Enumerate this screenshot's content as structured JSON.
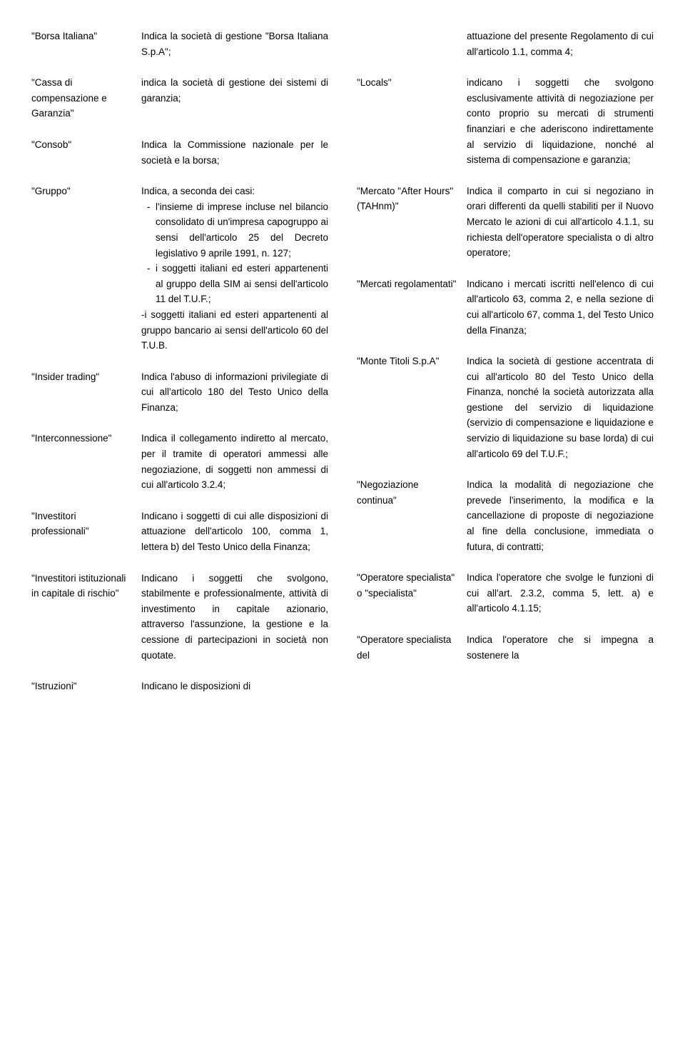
{
  "left": [
    {
      "term": "\"Borsa Italiana\"",
      "def": "Indica la società di gestione \"Borsa Italiana S.p.A\";"
    },
    {
      "term": "\"Cassa di compensazione e Garanzia\"",
      "def": "indica la società di gestione dei sistemi di garanzia;"
    },
    {
      "term": "\"Consob\"",
      "def": "Indica la Commissione nazionale per le società e la borsa;"
    },
    {
      "term": "\"Gruppo\"",
      "def_pre": "Indica, a seconda dei casi:",
      "def_list": [
        "l'insieme di imprese incluse nel bilancio consolidato di un'impresa capogruppo ai sensi dell'articolo 25 del Decreto legislativo 9 aprile 1991, n. 127;",
        "i soggetti italiani ed esteri appartenenti al gruppo della SIM ai sensi dell'articolo 11 del T.U.F.;"
      ],
      "def_post": "-i soggetti italiani ed esteri appartenenti al gruppo bancario ai sensi dell'articolo 60 del T.U.B."
    },
    {
      "term": "\"Insider trading\"",
      "def": "Indica l'abuso di informazioni privilegiate di cui all'articolo 180 del Testo Unico della Finanza;"
    },
    {
      "term": "\"Interconnessione\"",
      "def": "Indica il collegamento indiretto al mercato, per il tramite di operatori ammessi alle negoziazione, di soggetti non ammessi di cui all'articolo 3.2.4;"
    },
    {
      "term": "\"Investitori professionali\"",
      "def": "Indicano i soggetti di cui alle disposizioni di attuazione dell'articolo 100, comma 1, lettera b) del Testo Unico della Finanza;"
    },
    {
      "term": "\"Investitori istituzionali in capitale di rischio\"",
      "def": "Indicano i soggetti che svolgono, stabilmente e professionalmente, attività di investimento in capitale azionario, attraverso l'assunzione, la gestione e la cessione di partecipazioni in società non quotate."
    },
    {
      "term": "\"Istruzioni\"",
      "def": "Indicano le disposizioni di"
    }
  ],
  "right": [
    {
      "term": "",
      "def": "attuazione del presente Regolamento di cui all'articolo 1.1, comma 4;"
    },
    {
      "term": "\"Locals\"",
      "def": "indicano i soggetti che svolgono esclusivamente attività di negoziazione per conto proprio su mercati di strumenti finanziari e che aderiscono indirettamente al servizio di liquidazione, nonché al sistema di compensazione e garanzia;"
    },
    {
      "term": "\"Mercato \"After Hours\" (TAHnm)\"",
      "def": "Indica il comparto in cui si negoziano in orari differenti da quelli stabiliti per il Nuovo Mercato le azioni di cui all'articolo 4.1.1, su richiesta dell'operatore specialista o di altro operatore;"
    },
    {
      "term": "\"Mercati regolamentati\"",
      "def": "Indicano i mercati iscritti nell'elenco di cui all'articolo 63, comma 2, e nella sezione di cui all'articolo 67, comma 1, del Testo Unico della Finanza;"
    },
    {
      "term": "\"Monte Titoli S.p.A\"",
      "def": "Indica la società di gestione accentrata di cui all'articolo 80 del Testo Unico della Finanza, nonché la società autorizzata alla gestione del servizio di liquidazione (servizio di compensazione e liquidazione e servizio di liquidazione su base lorda) di cui all'articolo 69 del T.U.F.;"
    },
    {
      "term": "\"Negoziazione continua\"",
      "def": "Indica la modalità di negoziazione che prevede l'inserimento, la modifica e la cancellazione di proposte di negoziazione al fine della conclusione, immediata o futura, di contratti;"
    },
    {
      "term": "\"Operatore specialista\" o \"specialista\"",
      "def": "Indica l'operatore che svolge le funzioni di cui all'art. 2.3.2, comma 5, lett. a) e all'articolo 4.1.15;"
    },
    {
      "term": "\"Operatore specialista del",
      "def": "Indica l'operatore che si impegna a sostenere la"
    }
  ]
}
